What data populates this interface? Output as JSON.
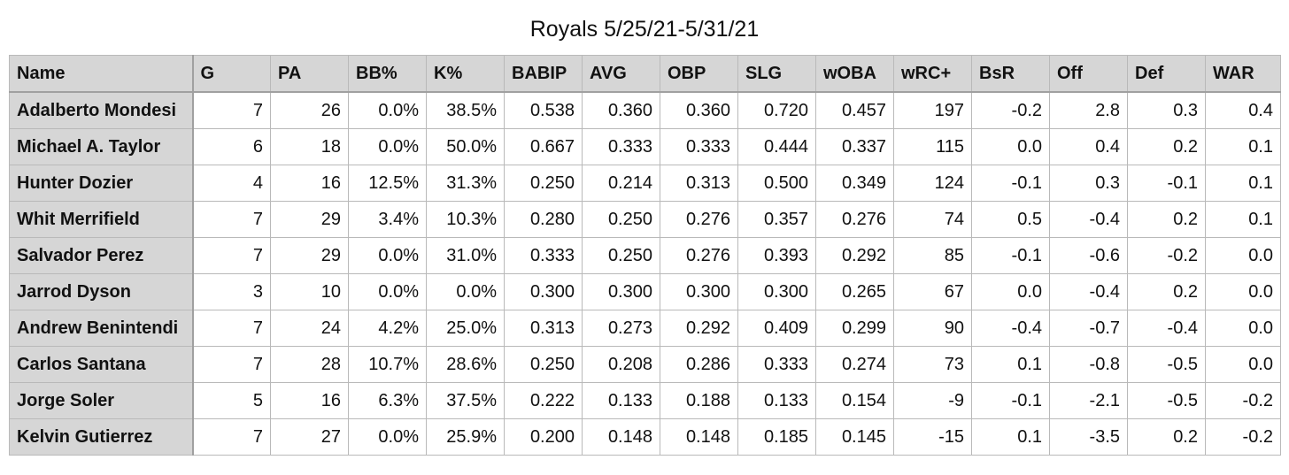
{
  "title": "Royals 5/25/21-5/31/21",
  "chart_data": {
    "type": "table",
    "title": "Royals 5/25/21-5/31/21",
    "columns": [
      "Name",
      "G",
      "PA",
      "BB%",
      "K%",
      "BABIP",
      "AVG",
      "OBP",
      "SLG",
      "wOBA",
      "wRC+",
      "BsR",
      "Off",
      "Def",
      "WAR"
    ],
    "rows": [
      [
        "Adalberto Mondesi",
        "7",
        "26",
        "0.0%",
        "38.5%",
        "0.538",
        "0.360",
        "0.360",
        "0.720",
        "0.457",
        "197",
        "-0.2",
        "2.8",
        "0.3",
        "0.4"
      ],
      [
        "Michael A. Taylor",
        "6",
        "18",
        "0.0%",
        "50.0%",
        "0.667",
        "0.333",
        "0.333",
        "0.444",
        "0.337",
        "115",
        "0.0",
        "0.4",
        "0.2",
        "0.1"
      ],
      [
        "Hunter Dozier",
        "4",
        "16",
        "12.5%",
        "31.3%",
        "0.250",
        "0.214",
        "0.313",
        "0.500",
        "0.349",
        "124",
        "-0.1",
        "0.3",
        "-0.1",
        "0.1"
      ],
      [
        "Whit Merrifield",
        "7",
        "29",
        "3.4%",
        "10.3%",
        "0.280",
        "0.250",
        "0.276",
        "0.357",
        "0.276",
        "74",
        "0.5",
        "-0.4",
        "0.2",
        "0.1"
      ],
      [
        "Salvador Perez",
        "7",
        "29",
        "0.0%",
        "31.0%",
        "0.333",
        "0.250",
        "0.276",
        "0.393",
        "0.292",
        "85",
        "-0.1",
        "-0.6",
        "-0.2",
        "0.0"
      ],
      [
        "Jarrod Dyson",
        "3",
        "10",
        "0.0%",
        "0.0%",
        "0.300",
        "0.300",
        "0.300",
        "0.300",
        "0.265",
        "67",
        "0.0",
        "-0.4",
        "0.2",
        "0.0"
      ],
      [
        "Andrew Benintendi",
        "7",
        "24",
        "4.2%",
        "25.0%",
        "0.313",
        "0.273",
        "0.292",
        "0.409",
        "0.299",
        "90",
        "-0.4",
        "-0.7",
        "-0.4",
        "0.0"
      ],
      [
        "Carlos Santana",
        "7",
        "28",
        "10.7%",
        "28.6%",
        "0.250",
        "0.208",
        "0.286",
        "0.333",
        "0.274",
        "73",
        "0.1",
        "-0.8",
        "-0.5",
        "0.0"
      ],
      [
        "Jorge Soler",
        "5",
        "16",
        "6.3%",
        "37.5%",
        "0.222",
        "0.133",
        "0.188",
        "0.133",
        "0.154",
        "-9",
        "-0.1",
        "-2.1",
        "-0.5",
        "-0.2"
      ],
      [
        "Kelvin Gutierrez",
        "7",
        "27",
        "0.0%",
        "25.9%",
        "0.200",
        "0.148",
        "0.148",
        "0.185",
        "0.145",
        "-15",
        "0.1",
        "-3.5",
        "0.2",
        "-0.2"
      ]
    ]
  },
  "colors": {
    "header_bg": "#d6d6d6",
    "name_col_bg": "#d6d6d6",
    "cell_bg": "#ffffff",
    "border": "#b9b9b9"
  }
}
